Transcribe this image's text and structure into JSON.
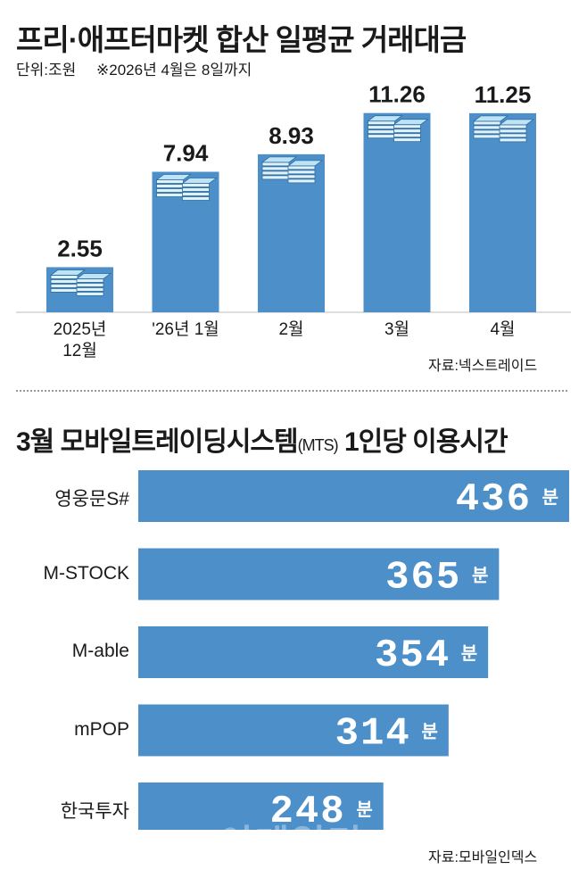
{
  "chart_data": [
    {
      "type": "bar",
      "title": "프리·애프터마켓 합산 일평균 거래대금",
      "unit_note": "단위:조원",
      "footnote": "※2026년 4월은 8일까지",
      "categories": [
        "2025년\n12월",
        "'26년 1월",
        "2월",
        "3월",
        "4월"
      ],
      "values": [
        2.55,
        7.94,
        8.93,
        11.26,
        11.25
      ],
      "value_labels": [
        "2.55",
        "7.94",
        "8.93",
        "11.26",
        "11.25"
      ],
      "ylim": [
        0,
        12
      ],
      "source": "자료:넥스트레이드",
      "bar_color": "#4d90c9"
    },
    {
      "type": "bar",
      "orientation": "horizontal",
      "title_main": "3월 모바일트레이딩시스템",
      "title_paren": "(MTS)",
      "title_tail": " 1인당 이용시간",
      "categories": [
        "영웅문S#",
        "M-STOCK",
        "M-able",
        "mPOP",
        "한국투자"
      ],
      "values": [
        436,
        365,
        354,
        314,
        248
      ],
      "unit": "분",
      "xlim": [
        0,
        436
      ],
      "source": "자료:모바일인덱스",
      "bar_color": "#4d90c9"
    }
  ],
  "watermark": "이데일리"
}
